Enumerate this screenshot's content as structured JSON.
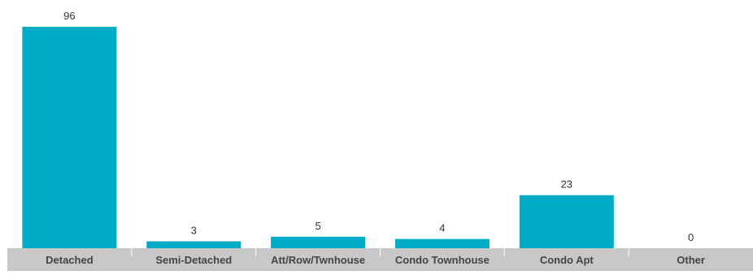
{
  "chart_data": {
    "type": "bar",
    "categories": [
      "Detached",
      "Semi-Detached",
      "Att/Row/Twnhouse",
      "Condo Townhouse",
      "Condo Apt",
      "Other"
    ],
    "values": [
      96,
      3,
      5,
      4,
      23,
      0
    ],
    "ylim": [
      0,
      100
    ],
    "grid": false,
    "legend": "none",
    "bar_color": "#00acc8",
    "axis_band_color": "#c8c8c8",
    "title": "",
    "xlabel": "",
    "ylabel": ""
  }
}
